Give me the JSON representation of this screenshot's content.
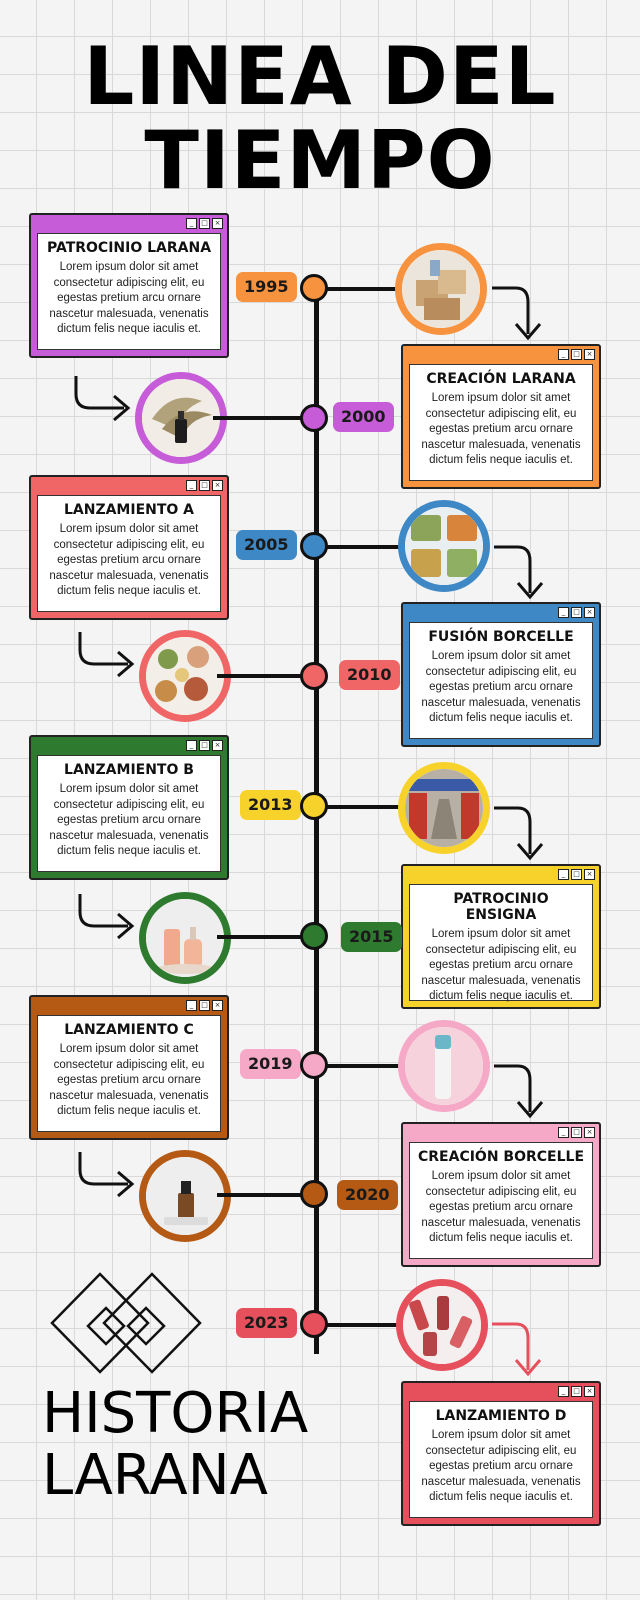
{
  "title": {
    "line1": "LINEA DEL",
    "line2": "TIEMPO"
  },
  "brand": {
    "line1": "HISTORIA",
    "line2": "LARANA"
  },
  "window_controls": [
    "_",
    "□",
    "×"
  ],
  "events": [
    {
      "year": "1995",
      "title": "PATROCINIO LARANA",
      "text": "Lorem ipsum dolor sit amet consectetur adipiscing elit, eu egestas pretium arcu ornare nascetur malesuada, venenatis dictum felis neque iaculis et.",
      "color": "#c65cd8",
      "inner": "#c65cd8",
      "side": "left",
      "image": "boxes-icon"
    },
    {
      "year": "2000",
      "title": "CREACIÓN LARANA",
      "text": "Lorem ipsum dolor sit amet consectetur adipiscing elit, eu egestas pretium arcu ornare nascetur malesuada, venenatis dictum felis neque iaculis et.",
      "color": "#f7933e",
      "side": "right",
      "image": "serum-bottle-icon"
    },
    {
      "year": "2005",
      "title": "LANZAMIENTO A",
      "text": "Lorem ipsum dolor sit amet consectetur adipiscing elit, eu egestas pretium arcu ornare nascetur malesuada, venenatis dictum felis neque iaculis et.",
      "color": "#f06566",
      "side": "left",
      "image": "meal-boxes-icon"
    },
    {
      "year": "2010",
      "title": "FUSIÓN BORCELLE",
      "text": "Lorem ipsum dolor sit amet consectetur adipiscing elit, eu egestas pretium arcu ornare nascetur malesuada, venenatis dictum felis neque iaculis et.",
      "color": "#3e88c6",
      "side": "right",
      "image": "ingredients-icon"
    },
    {
      "year": "2013",
      "title": "LANZAMIENTO B",
      "text": "Lorem ipsum dolor sit amet consectetur adipiscing elit, eu egestas pretium arcu ornare nascetur malesuada, venenatis dictum felis neque iaculis et.",
      "color": "#2e7a2e",
      "side": "left",
      "image": "warehouse-icon"
    },
    {
      "year": "2015",
      "title": "PATROCINIO ENSIGNA",
      "text": "Lorem ipsum dolor sit amet consectetur adipiscing elit, eu egestas pretium arcu ornare nascetur malesuada, venenatis dictum felis neque iaculis et.",
      "color": "#f7d22a",
      "side": "right",
      "image": "cosmetic-bottles-icon"
    },
    {
      "year": "2019",
      "title": "LANZAMIENTO C",
      "text": "Lorem ipsum dolor sit amet consectetur adipiscing elit, eu egestas pretium arcu ornare nascetur malesuada, venenatis dictum felis neque iaculis et.",
      "color": "#b45a14",
      "side": "left",
      "image": "lip-balm-icon"
    },
    {
      "year": "2020",
      "title": "CREACIÓN BORCELLE",
      "text": "Lorem ipsum dolor sit amet consectetur adipiscing elit, eu egestas pretium arcu ornare nascetur malesuada, venenatis dictum felis neque iaculis et.",
      "color": "#f5a9c6",
      "side": "right",
      "image": "dropper-bottle-icon"
    },
    {
      "year": "2023",
      "title": "LANZAMIENTO D",
      "text": "Lorem ipsum dolor sit amet consectetur adipiscing elit, eu egestas pretium arcu ornare nascetur malesuada, venenatis dictum felis neque iaculis et.",
      "color": "#e5505c",
      "side": "right",
      "image": "lipsticks-icon"
    }
  ]
}
